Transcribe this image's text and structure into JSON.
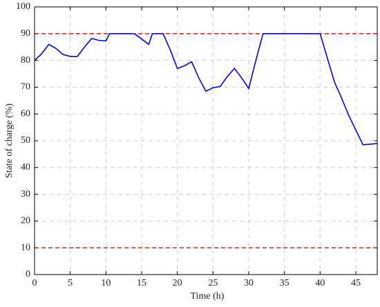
{
  "chart_data": {
    "type": "line",
    "xlabel": "Time (h)",
    "ylabel": "State of charge (%)",
    "x": [
      0,
      1,
      2,
      3,
      4,
      5,
      6,
      7,
      8,
      9,
      10,
      10.5,
      11,
      14,
      15,
      16,
      16.5,
      18,
      19,
      20,
      21,
      22,
      23,
      24,
      25,
      26,
      27,
      28,
      29,
      30,
      31,
      32,
      40,
      41,
      42,
      43,
      44,
      45,
      46,
      47,
      48
    ],
    "series": [
      {
        "color": "#0000e6",
        "values": [
          80,
          82.5,
          86,
          84.5,
          82.2,
          81.5,
          81.5,
          85,
          88.2,
          87.5,
          87.3,
          90,
          90,
          90,
          88,
          86,
          90,
          90,
          84,
          77,
          78,
          79.5,
          73.5,
          68.5,
          69.8,
          70.3,
          74,
          77,
          73.5,
          69.5,
          80,
          90,
          90,
          81,
          72,
          66,
          59.5,
          54,
          48.5,
          48.7,
          49
        ]
      }
    ],
    "reference_lines": [
      {
        "value": 90,
        "color": "#e60000"
      },
      {
        "value": 10,
        "color": "#e60000"
      }
    ],
    "xlim": [
      0,
      48
    ],
    "ylim": [
      0,
      100
    ],
    "xticks": [
      0,
      5,
      10,
      15,
      20,
      25,
      30,
      35,
      40,
      45
    ],
    "yticks": [
      0,
      10,
      20,
      30,
      40,
      50,
      60,
      70,
      80,
      90,
      100
    ],
    "grid": true
  }
}
